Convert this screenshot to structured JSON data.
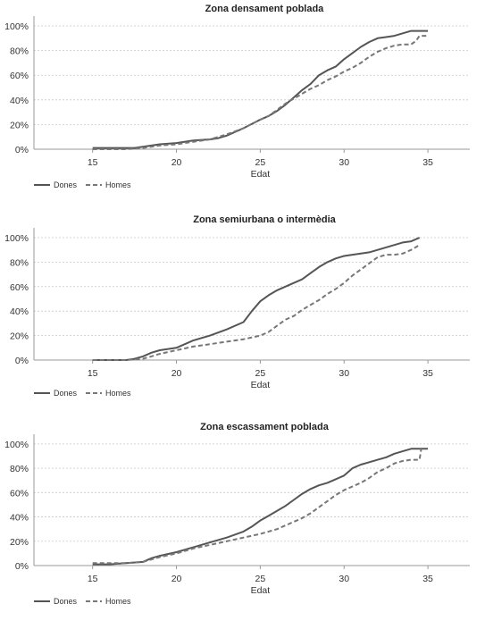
{
  "chart_data": [
    {
      "type": "line",
      "title": "Zona densament poblada",
      "xlabel": "Edat",
      "ylabel": "",
      "xlim": [
        11.5,
        37.5
      ],
      "ylim": [
        0,
        1.08
      ],
      "x_ticks": [
        "15",
        "20",
        "25",
        "30",
        "35"
      ],
      "y_ticks": [
        "0%",
        "20%",
        "40%",
        "60%",
        "80%",
        "100%"
      ],
      "grid": "horizontal dotted",
      "legend": "bottom-left",
      "series": [
        {
          "name": "Dones",
          "style": "solid",
          "color": "#555555",
          "x": [
            15,
            16,
            17,
            17.5,
            18,
            18.5,
            19,
            20,
            21,
            22,
            22.5,
            23,
            24,
            25,
            25.5,
            26,
            26.5,
            27,
            27.5,
            28,
            28.5,
            29,
            29.5,
            30,
            30.5,
            31,
            31.5,
            32,
            32.5,
            33,
            33.5,
            34,
            35
          ],
          "y": [
            0.01,
            0.01,
            0.01,
            0.01,
            0.02,
            0.03,
            0.04,
            0.05,
            0.07,
            0.08,
            0.09,
            0.11,
            0.17,
            0.24,
            0.27,
            0.31,
            0.36,
            0.42,
            0.48,
            0.53,
            0.6,
            0.64,
            0.67,
            0.73,
            0.78,
            0.83,
            0.87,
            0.9,
            0.91,
            0.92,
            0.94,
            0.96,
            0.96
          ]
        },
        {
          "name": "Homes",
          "style": "dashed",
          "color": "#777777",
          "x": [
            15,
            16,
            17,
            18,
            18.5,
            19,
            20,
            21,
            22,
            23,
            24,
            25,
            25.5,
            26,
            26.5,
            27,
            27.5,
            28,
            28.5,
            29,
            29.5,
            30,
            30.5,
            31,
            31.5,
            32,
            32.5,
            33,
            33.5,
            34,
            34.3,
            34.5,
            35
          ],
          "y": [
            0,
            0,
            0,
            0.01,
            0.02,
            0.03,
            0.04,
            0.06,
            0.08,
            0.12,
            0.17,
            0.24,
            0.27,
            0.32,
            0.37,
            0.41,
            0.45,
            0.49,
            0.52,
            0.56,
            0.59,
            0.63,
            0.66,
            0.7,
            0.75,
            0.79,
            0.82,
            0.84,
            0.85,
            0.85,
            0.88,
            0.92,
            0.92
          ]
        }
      ]
    },
    {
      "type": "line",
      "title": "Zona semiurbana o intermèdia",
      "xlabel": "Edat",
      "ylabel": "",
      "xlim": [
        11.5,
        37.5
      ],
      "ylim": [
        0,
        1.08
      ],
      "x_ticks": [
        "15",
        "20",
        "25",
        "30",
        "35"
      ],
      "y_ticks": [
        "0%",
        "20%",
        "40%",
        "60%",
        "80%",
        "100%"
      ],
      "grid": "horizontal dotted",
      "legend": "bottom-left",
      "series": [
        {
          "name": "Dones",
          "style": "solid",
          "color": "#555555",
          "x": [
            15,
            16,
            17,
            17.5,
            18,
            18.5,
            19,
            20,
            20.5,
            21,
            22,
            23,
            24,
            24.5,
            25,
            25.5,
            26,
            26.5,
            27,
            27.5,
            28,
            28.5,
            29,
            29.5,
            30,
            30.5,
            31,
            31.5,
            32,
            32.5,
            33,
            33.5,
            34,
            34.5
          ],
          "y": [
            0,
            0,
            0,
            0.01,
            0.03,
            0.06,
            0.08,
            0.1,
            0.13,
            0.16,
            0.2,
            0.25,
            0.31,
            0.4,
            0.48,
            0.53,
            0.57,
            0.6,
            0.63,
            0.66,
            0.71,
            0.76,
            0.8,
            0.83,
            0.85,
            0.86,
            0.87,
            0.88,
            0.9,
            0.92,
            0.94,
            0.96,
            0.97,
            1.0
          ]
        },
        {
          "name": "Homes",
          "style": "dashed",
          "color": "#777777",
          "x": [
            15,
            16,
            17,
            18,
            18.5,
            19,
            20,
            21,
            22,
            23,
            24,
            25,
            25.5,
            26,
            26.5,
            27,
            27.5,
            28,
            28.5,
            29,
            29.5,
            30,
            30.5,
            31,
            31.5,
            32,
            32.5,
            33,
            33.5,
            34,
            34.5
          ],
          "y": [
            0,
            0,
            0,
            0.01,
            0.03,
            0.05,
            0.08,
            0.11,
            0.13,
            0.15,
            0.17,
            0.2,
            0.23,
            0.28,
            0.33,
            0.36,
            0.41,
            0.45,
            0.49,
            0.54,
            0.58,
            0.63,
            0.69,
            0.74,
            0.79,
            0.84,
            0.86,
            0.86,
            0.87,
            0.9,
            0.94
          ]
        }
      ]
    },
    {
      "type": "line",
      "title": "Zona escassament poblada",
      "xlabel": "Edat",
      "ylabel": "",
      "xlim": [
        11.5,
        37.5
      ],
      "ylim": [
        0,
        1.08
      ],
      "x_ticks": [
        "15",
        "20",
        "25",
        "30",
        "35"
      ],
      "y_ticks": [
        "0%",
        "20%",
        "40%",
        "60%",
        "80%",
        "100%"
      ],
      "grid": "horizontal dotted",
      "legend": "bottom-left",
      "series": [
        {
          "name": "Dones",
          "style": "solid",
          "color": "#555555",
          "x": [
            15,
            16,
            17,
            18,
            18.5,
            19,
            20,
            21,
            22,
            23,
            24,
            24.5,
            25,
            25.5,
            26,
            26.5,
            27,
            27.5,
            28,
            28.5,
            29,
            29.5,
            30,
            30.5,
            31,
            31.5,
            32,
            32.5,
            33,
            33.5,
            34,
            35
          ],
          "y": [
            0.01,
            0.01,
            0.02,
            0.03,
            0.06,
            0.08,
            0.11,
            0.15,
            0.19,
            0.23,
            0.28,
            0.32,
            0.37,
            0.41,
            0.45,
            0.49,
            0.54,
            0.59,
            0.63,
            0.66,
            0.68,
            0.71,
            0.74,
            0.8,
            0.83,
            0.85,
            0.87,
            0.89,
            0.92,
            0.94,
            0.96,
            0.96
          ]
        },
        {
          "name": "Homes",
          "style": "dashed",
          "color": "#777777",
          "x": [
            15,
            16,
            17,
            18,
            18.5,
            19,
            20,
            21,
            22,
            23,
            24,
            25,
            25.5,
            26,
            26.5,
            27,
            27.5,
            28,
            28.5,
            29,
            29.5,
            30,
            30.5,
            31,
            31.5,
            32,
            32.5,
            33,
            33.5,
            34,
            34.5,
            34.6
          ],
          "y": [
            0.02,
            0.02,
            0.02,
            0.03,
            0.05,
            0.07,
            0.1,
            0.14,
            0.17,
            0.2,
            0.23,
            0.26,
            0.28,
            0.3,
            0.33,
            0.36,
            0.39,
            0.43,
            0.48,
            0.53,
            0.58,
            0.62,
            0.65,
            0.68,
            0.72,
            0.77,
            0.8,
            0.84,
            0.86,
            0.87,
            0.87,
            0.96
          ]
        }
      ]
    }
  ]
}
